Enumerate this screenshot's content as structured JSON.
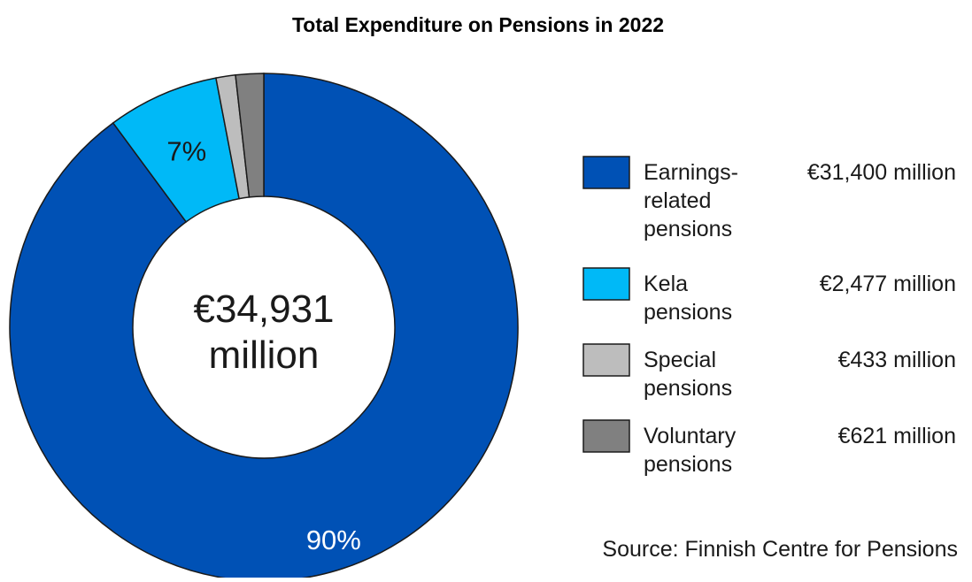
{
  "chart_data": {
    "type": "pie",
    "variant": "donut",
    "title": "Total Expenditure on Pensions in 2022",
    "center_label": [
      "€34,931",
      "million"
    ],
    "source": "Source: Finnish Centre for Pensions",
    "slices": [
      {
        "name_lines": [
          "Earnings-",
          "related",
          "pensions"
        ],
        "value": 31400,
        "value_label": "€31,400 million",
        "percent_label": "90%",
        "color": "#0051B5"
      },
      {
        "name_lines": [
          "Kela",
          "pensions"
        ],
        "value": 2477,
        "value_label": "€2,477 million",
        "percent_label": "7%",
        "color": "#00B9F7"
      },
      {
        "name_lines": [
          "Special",
          "pensions"
        ],
        "value": 433,
        "value_label": "€433 million",
        "percent_label": "",
        "color": "#BDBDBD"
      },
      {
        "name_lines": [
          "Voluntary",
          "pensions"
        ],
        "value": 621,
        "value_label": "€621 million",
        "percent_label": "",
        "color": "#808080"
      }
    ],
    "legend_position": "right"
  }
}
